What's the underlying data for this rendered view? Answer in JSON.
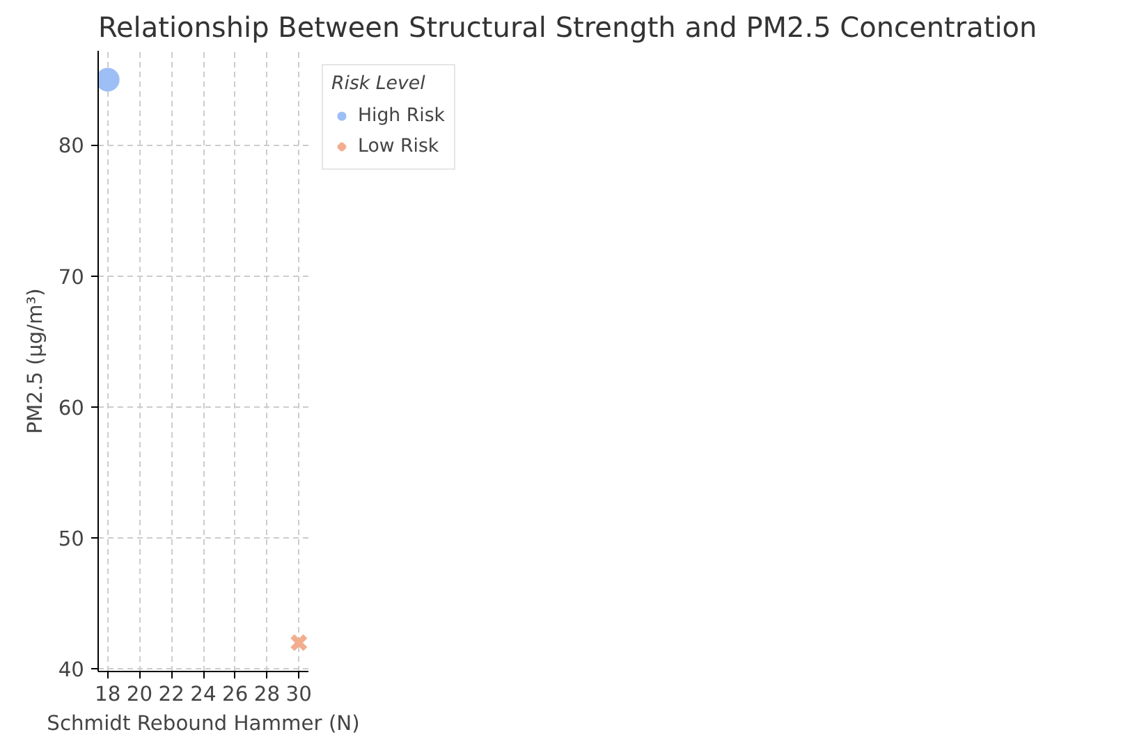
{
  "chart_data": {
    "type": "scatter",
    "title": "Relationship Between Structural Strength and PM2.5 Concentration",
    "xlabel": "Schmidt Rebound Hammer (N)",
    "ylabel": "PM2.5 (µg/m³)",
    "legend_title": "Risk Level",
    "series": [
      {
        "name": "High Risk",
        "color": "#9dbff5",
        "marker": "circle",
        "x": [
          18
        ],
        "values": [
          85
        ]
      },
      {
        "name": "Low Risk",
        "color": "#f2ad8f",
        "marker": "cross",
        "x": [
          30
        ],
        "values": [
          42
        ]
      }
    ],
    "xlim": [
      17.4,
      30.6
    ],
    "ylim": [
      39.8,
      87.2
    ],
    "xticks": [
      18,
      20,
      22,
      24,
      26,
      28,
      30
    ],
    "yticks": [
      40,
      50,
      60,
      70,
      80
    ],
    "grid": true,
    "legend": "top right"
  }
}
